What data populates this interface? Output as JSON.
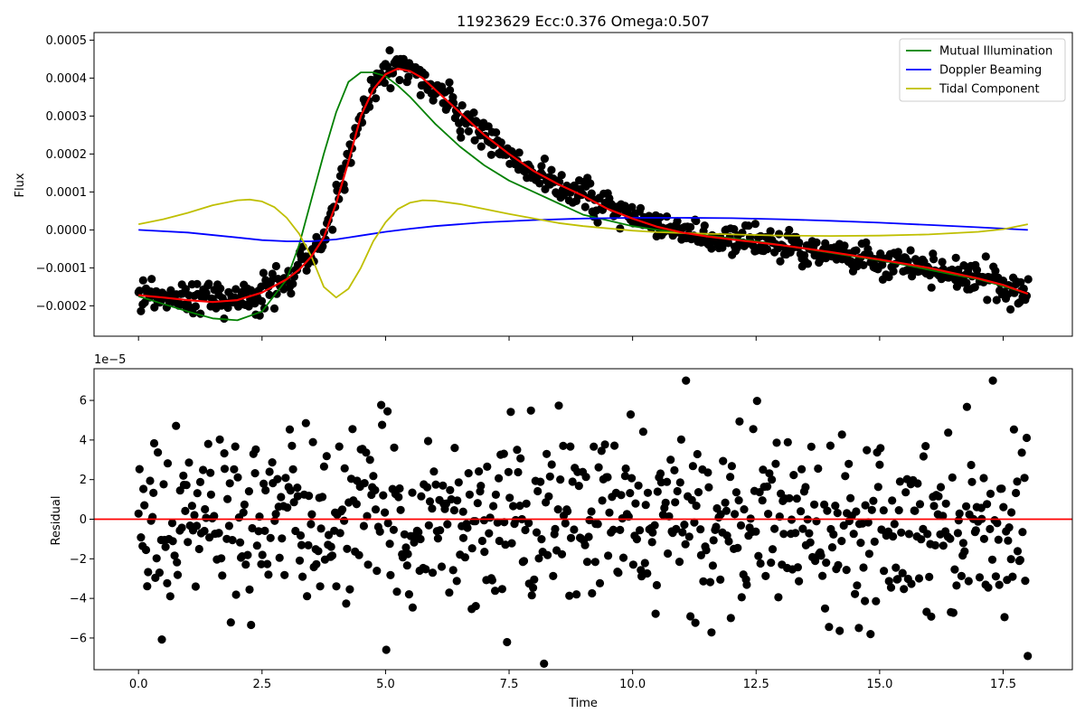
{
  "title": "11923629    Ecc:0.376  Omega:0.507",
  "chart_data": [
    {
      "type": "scatter",
      "panel": "top",
      "xlabel": "",
      "ylabel": "Flux",
      "xlim": [
        -0.9,
        18.9
      ],
      "ylim": [
        -0.00028,
        0.00052
      ],
      "grid": false,
      "legend_position": "top-right",
      "xticks": [
        0.0,
        2.5,
        5.0,
        7.5,
        10.0,
        12.5,
        15.0,
        17.5
      ],
      "xtick_labels_visible": false,
      "yticks": [
        -0.0002,
        -0.0001,
        0.0,
        0.0001,
        0.0002,
        0.0003,
        0.0004,
        0.0005
      ],
      "ytick_labels": [
        "−0.0002",
        "−0.0001",
        "0.0000",
        "0.0001",
        "0.0002",
        "0.0003",
        "0.0004",
        "0.0005"
      ],
      "series": [
        {
          "name": "Mutual Illumination",
          "kind": "line",
          "color": "#008000",
          "x": [
            0.0,
            0.5,
            1.0,
            1.5,
            2.0,
            2.5,
            3.0,
            3.25,
            3.5,
            3.75,
            4.0,
            4.25,
            4.5,
            4.75,
            5.0,
            5.25,
            5.5,
            6.0,
            6.5,
            7.0,
            7.5,
            8.0,
            8.5,
            9.0,
            9.5,
            10.0,
            10.5,
            11.0,
            11.5,
            12.0,
            12.5,
            13.0,
            13.5,
            14.0,
            14.5,
            15.0,
            15.5,
            16.0,
            16.5,
            17.0,
            17.5,
            18.0
          ],
          "y": [
            -0.000175,
            -0.000195,
            -0.000215,
            -0.000233,
            -0.000238,
            -0.000215,
            -0.00013,
            -4e-05,
            8e-05,
            0.0002,
            0.00031,
            0.00039,
            0.000415,
            0.000415,
            0.000405,
            0.00038,
            0.00035,
            0.00028,
            0.00022,
            0.00017,
            0.00013,
            0.0001,
            7e-05,
            4e-05,
            2.5e-05,
            1e-05,
            0.0,
            -8e-06,
            -1.5e-05,
            -2.2e-05,
            -3e-05,
            -4e-05,
            -5e-05,
            -6e-05,
            -7e-05,
            -8e-05,
            -9.2e-05,
            -0.000105,
            -0.000118,
            -0.00013,
            -0.000148,
            -0.000168
          ]
        },
        {
          "name": "Doppler Beaming",
          "kind": "line",
          "color": "#0000ff",
          "x": [
            0.0,
            1.0,
            2.0,
            2.5,
            3.0,
            3.5,
            4.0,
            4.5,
            5.0,
            5.5,
            6.0,
            7.0,
            8.0,
            9.0,
            10.0,
            11.0,
            12.0,
            13.0,
            14.0,
            15.0,
            16.0,
            17.0,
            18.0
          ],
          "y": [
            0.0,
            -7e-06,
            -2e-05,
            -2.7e-05,
            -3e-05,
            -3e-05,
            -2.5e-05,
            -1.5e-05,
            -5e-06,
            3e-06,
            1e-05,
            2e-05,
            2.6e-05,
            3e-05,
            3.2e-05,
            3.2e-05,
            3.1e-05,
            2.8e-05,
            2.4e-05,
            1.9e-05,
            1.3e-05,
            7e-06,
            0.0
          ]
        },
        {
          "name": "Tidal Component",
          "kind": "line",
          "color": "#bfbf00",
          "x": [
            0.0,
            0.5,
            1.0,
            1.5,
            2.0,
            2.25,
            2.5,
            2.75,
            3.0,
            3.25,
            3.5,
            3.75,
            4.0,
            4.25,
            4.5,
            4.75,
            5.0,
            5.25,
            5.5,
            5.75,
            6.0,
            6.5,
            7.0,
            7.5,
            8.0,
            8.5,
            9.0,
            9.5,
            10.0,
            10.5,
            11.0,
            11.5,
            12.0,
            13.0,
            14.0,
            15.0,
            16.0,
            17.0,
            17.5,
            18.0
          ],
          "y": [
            1.5e-05,
            2.8e-05,
            4.5e-05,
            6.5e-05,
            7.8e-05,
            8e-05,
            7.5e-05,
            6e-05,
            3.2e-05,
            -1e-05,
            -7e-05,
            -0.00015,
            -0.000178,
            -0.000155,
            -0.0001,
            -3e-05,
            2e-05,
            5.5e-05,
            7.2e-05,
            7.8e-05,
            7.7e-05,
            6.8e-05,
            5.5e-05,
            4.2e-05,
            3e-05,
            1.8e-05,
            1e-05,
            4e-06,
            -2e-06,
            -6e-06,
            -8e-06,
            -1e-05,
            -1.2e-05,
            -1.5e-05,
            -1.6e-05,
            -1.5e-05,
            -1.2e-05,
            -5e-06,
            2e-06,
            1.5e-05
          ]
        },
        {
          "name": "",
          "kind": "line",
          "color": "#ff0000",
          "x": [
            0.0,
            0.5,
            1.0,
            1.5,
            2.0,
            2.5,
            3.0,
            3.25,
            3.5,
            3.75,
            4.0,
            4.25,
            4.5,
            4.75,
            5.0,
            5.25,
            5.5,
            5.75,
            6.0,
            6.5,
            7.0,
            7.5,
            8.0,
            8.5,
            9.0,
            9.5,
            10.0,
            10.5,
            11.0,
            11.5,
            12.0,
            13.0,
            14.0,
            15.0,
            16.0,
            17.0,
            17.5,
            18.0
          ],
          "y": [
            -0.000172,
            -0.000178,
            -0.000185,
            -0.00019,
            -0.000185,
            -0.000165,
            -0.00013,
            -0.000105,
            -7e-05,
            -2e-05,
            7e-05,
            0.00018,
            0.0003,
            0.00037,
            0.00041,
            0.000425,
            0.000418,
            0.0004,
            0.00037,
            0.00031,
            0.00025,
            0.0002,
            0.000155,
            0.00012,
            9e-05,
            5.5e-05,
            3e-05,
            8e-06,
            -7e-06,
            -1.7e-05,
            -2.5e-05,
            -4e-05,
            -5.8e-05,
            -7.8e-05,
            -0.0001,
            -0.000128,
            -0.000145,
            -0.000168
          ]
        },
        {
          "name": "",
          "kind": "points",
          "color": "#000000",
          "generated_around": "red fit curve",
          "count": 720,
          "noise_std": 2.2e-05
        }
      ]
    },
    {
      "type": "scatter",
      "panel": "bottom",
      "xlabel": "Time",
      "ylabel": "Residual",
      "y_offset_label": "1e−5",
      "xlim": [
        -0.9,
        18.9
      ],
      "ylim": [
        -7.6,
        7.6
      ],
      "y_scale_factor": 1e-05,
      "grid": false,
      "xticks": [
        0.0,
        2.5,
        5.0,
        7.5,
        10.0,
        12.5,
        15.0,
        17.5
      ],
      "xtick_labels": [
        "0.0",
        "2.5",
        "5.0",
        "7.5",
        "10.0",
        "12.5",
        "15.0",
        "17.5"
      ],
      "yticks": [
        -6,
        -4,
        -2,
        0,
        2,
        4,
        6
      ],
      "ytick_labels": [
        "−6",
        "−4",
        "−2",
        "0",
        "2",
        "4",
        "6"
      ],
      "series": [
        {
          "name": "",
          "kind": "points",
          "color": "#000000",
          "count": 720,
          "noise_std": 2.2,
          "range": [
            -7.3,
            7.0
          ]
        },
        {
          "name": "",
          "kind": "hline",
          "color": "#ff0000",
          "y": 0
        }
      ]
    }
  ]
}
